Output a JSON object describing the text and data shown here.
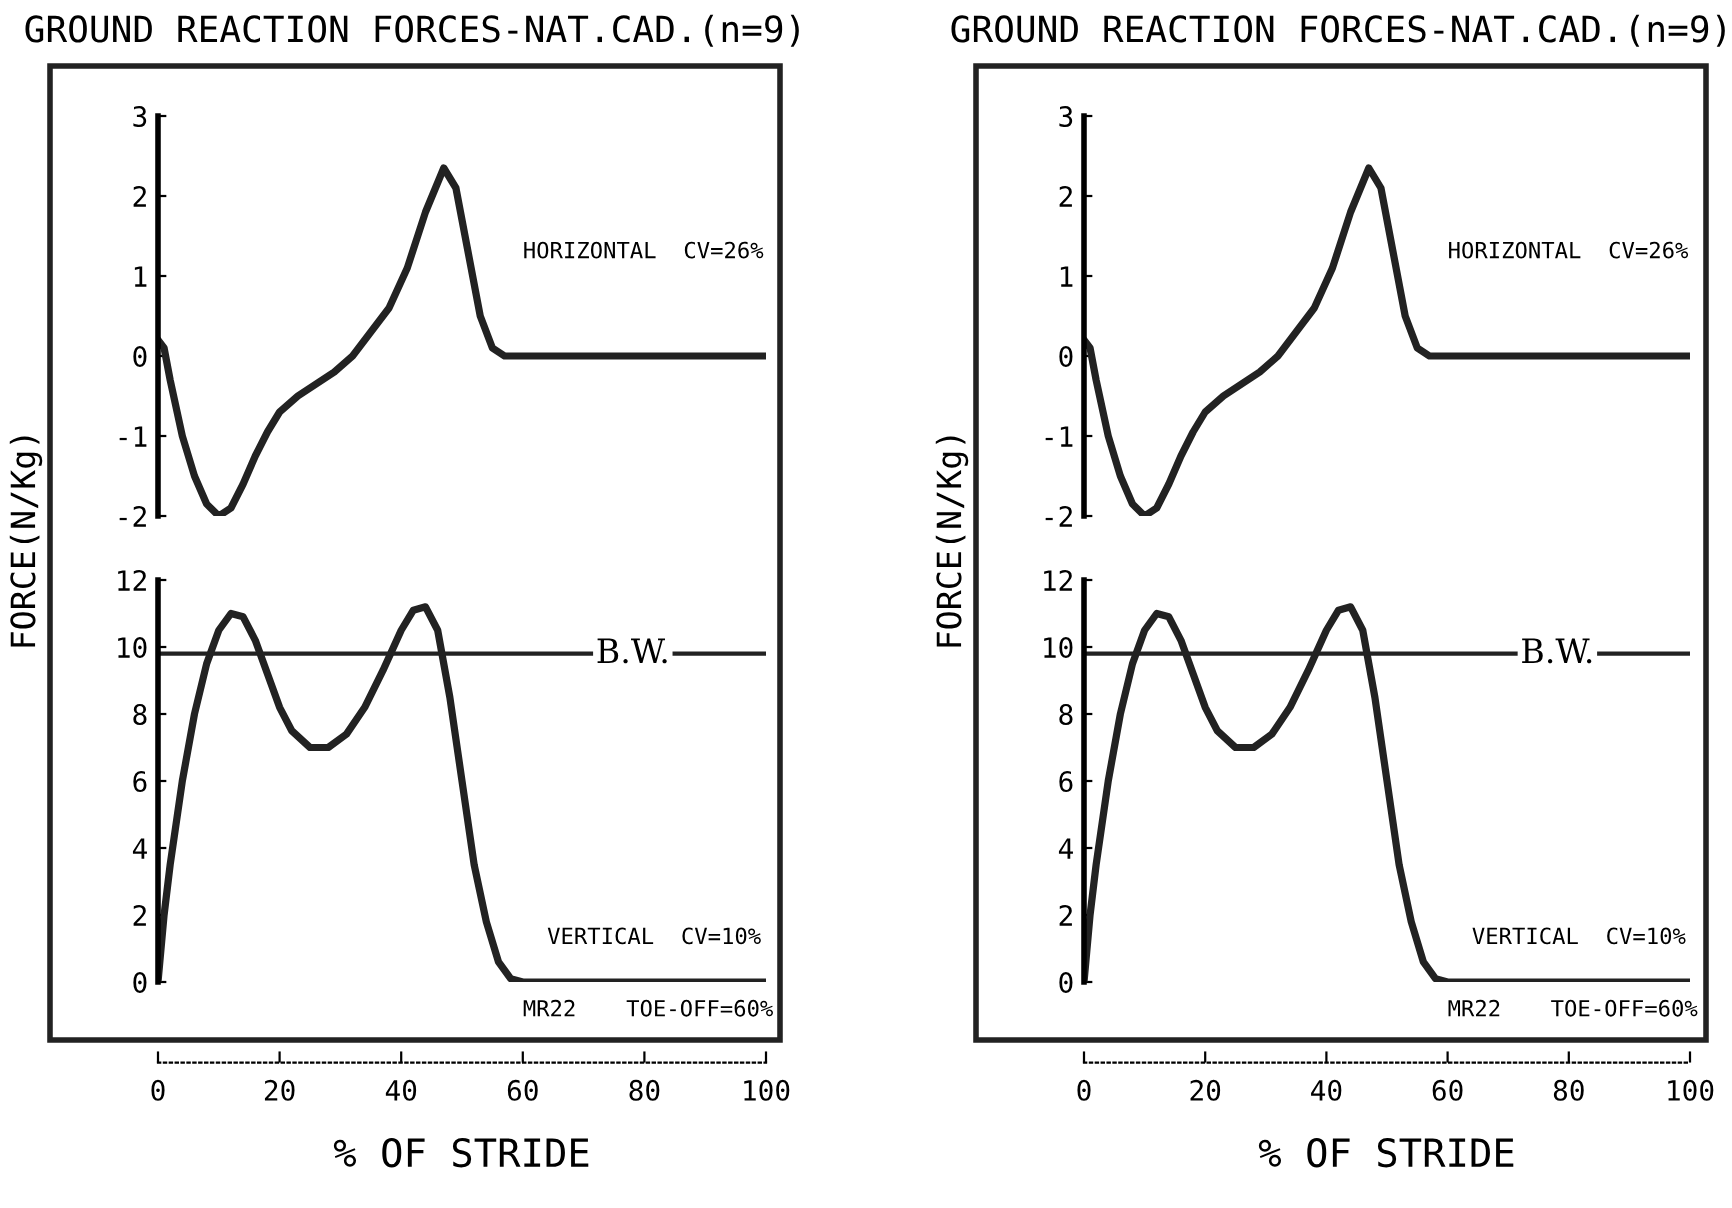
{
  "chart_data": [
    {
      "type": "line",
      "title": "GROUND REACTION FORCES-NAT.CAD.(n=9)",
      "ylabel": "FORCE(N/Kg)",
      "tick_labels": "y",
      "xlim": [
        0,
        100
      ],
      "ylim": [
        -2,
        3
      ],
      "yticks": [
        -2,
        -1,
        0,
        1,
        2,
        3
      ],
      "annotations": [
        "HORIZONTAL  CV=26%"
      ],
      "series": [
        {
          "color": "#222222",
          "x": [
            0,
            1,
            2,
            4,
            6,
            8,
            10,
            12,
            14,
            16,
            18,
            20,
            23,
            26,
            29,
            32,
            35,
            38,
            41,
            44,
            47,
            49,
            51,
            53,
            55,
            57,
            100
          ],
          "values": [
            0.2,
            0.1,
            -0.3,
            -1.0,
            -1.5,
            -1.85,
            -2.0,
            -1.9,
            -1.6,
            -1.25,
            -0.95,
            -0.7,
            -0.5,
            -0.35,
            -0.2,
            0.0,
            0.3,
            0.6,
            1.1,
            1.8,
            2.35,
            2.1,
            1.3,
            0.5,
            0.1,
            0,
            0
          ]
        }
      ]
    },
    {
      "type": "line",
      "xlabel": "% OF STRIDE",
      "xlim": [
        0,
        100
      ],
      "xticks": [
        0,
        20,
        40,
        60,
        80,
        100
      ],
      "ylim": [
        0,
        12
      ],
      "yticks": [
        0,
        2,
        4,
        6,
        8,
        10,
        12
      ],
      "ref_lines": [
        {
          "axis": "y",
          "value": 9.8,
          "label": "B.W."
        }
      ],
      "annotations": [
        "VERTICAL  CV=10%",
        "MR22",
        "TOE-OFF=60%"
      ],
      "series": [
        {
          "color": "#222222",
          "x": [
            0,
            1,
            2,
            4,
            6,
            8,
            10,
            12,
            14,
            16,
            18,
            20,
            22,
            25,
            28,
            31,
            34,
            37,
            40,
            42,
            44,
            46,
            48,
            50,
            52,
            54,
            56,
            58,
            60,
            100
          ],
          "values": [
            0,
            2,
            3.5,
            6,
            8,
            9.5,
            10.5,
            11,
            10.9,
            10.2,
            9.2,
            8.2,
            7.5,
            7.0,
            7.0,
            7.4,
            8.2,
            9.3,
            10.5,
            11.1,
            11.2,
            10.5,
            8.5,
            6,
            3.5,
            1.8,
            0.6,
            0.1,
            0,
            0
          ]
        }
      ]
    },
    {
      "type": "line",
      "title": "GROUND REACTION FORCES-NAT.CAD.(n=9)",
      "ylabel": "FORCE(N/Kg)",
      "tick_labels": "y",
      "xlim": [
        0,
        100
      ],
      "ylim": [
        -2,
        3
      ],
      "yticks": [
        -2,
        -1,
        0,
        1,
        2,
        3
      ],
      "annotations": [
        "HORIZONTAL  CV=26%"
      ],
      "series": [
        {
          "color": "#222222",
          "x": [
            0,
            1,
            2,
            4,
            6,
            8,
            10,
            12,
            14,
            16,
            18,
            20,
            23,
            26,
            29,
            32,
            35,
            38,
            41,
            44,
            47,
            49,
            51,
            53,
            55,
            57,
            100
          ],
          "values": [
            0.2,
            0.1,
            -0.3,
            -1.0,
            -1.5,
            -1.85,
            -2.0,
            -1.9,
            -1.6,
            -1.25,
            -0.95,
            -0.7,
            -0.5,
            -0.35,
            -0.2,
            0.0,
            0.3,
            0.6,
            1.1,
            1.8,
            2.35,
            2.1,
            1.3,
            0.5,
            0.1,
            0,
            0
          ]
        }
      ]
    },
    {
      "type": "line",
      "xlabel": "% OF STRIDE",
      "xlim": [
        0,
        100
      ],
      "xticks": [
        0,
        20,
        40,
        60,
        80,
        100
      ],
      "ylim": [
        0,
        12
      ],
      "yticks": [
        0,
        2,
        4,
        6,
        8,
        10,
        12
      ],
      "ref_lines": [
        {
          "axis": "y",
          "value": 9.8,
          "label": "B.W."
        }
      ],
      "annotations": [
        "VERTICAL  CV=10%",
        "MR22",
        "TOE-OFF=60%"
      ],
      "series": [
        {
          "color": "#222222",
          "x": [
            0,
            1,
            2,
            4,
            6,
            8,
            10,
            12,
            14,
            16,
            18,
            20,
            22,
            25,
            28,
            31,
            34,
            37,
            40,
            42,
            44,
            46,
            48,
            50,
            52,
            54,
            56,
            58,
            60,
            100
          ],
          "values": [
            0,
            2,
            3.5,
            6,
            8,
            9.5,
            10.5,
            11,
            10.9,
            10.2,
            9.2,
            8.2,
            7.5,
            7.0,
            7.0,
            7.4,
            8.2,
            9.3,
            10.5,
            11.1,
            11.2,
            10.5,
            8.5,
            6,
            3.5,
            1.8,
            0.6,
            0.1,
            0,
            0
          ]
        }
      ]
    }
  ]
}
